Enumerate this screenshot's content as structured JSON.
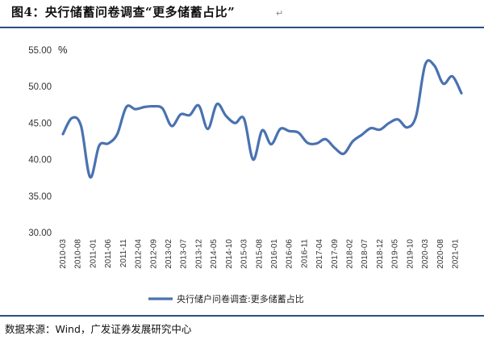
{
  "header": {
    "title": "图4：央行储蓄问卷调查“更多储蓄占比”",
    "mark": "↵"
  },
  "footer": {
    "source": "数据来源：Wind，广发证券发展研究中心"
  },
  "colors": {
    "line": "#4a72b0",
    "rule": "#2b4e85"
  },
  "chart_data": {
    "type": "line",
    "unit_label": "%",
    "ylim": [
      30,
      55
    ],
    "yticks": [
      "55.00",
      "50.00",
      "45.00",
      "40.00",
      "35.00",
      "30.00"
    ],
    "ytick_values": [
      55,
      50,
      45,
      40,
      35,
      30
    ],
    "grid": false,
    "legend_position": "bottom",
    "xtick_labels": [
      "2010-03",
      "2010-08",
      "2011-01",
      "2011-06",
      "2011-11",
      "2012-04",
      "2012-09",
      "2013-02",
      "2013-07",
      "2013-12",
      "2014-05",
      "2014-10",
      "2015-03",
      "2015-08",
      "2016-01",
      "2016-06",
      "2016-11",
      "2017-04",
      "2017-09",
      "2018-02",
      "2018-07",
      "2018-12",
      "2019-05",
      "2019-10",
      "2020-03",
      "2020-08",
      "2021-01"
    ],
    "series": [
      {
        "name": "央行储户问卷调查:更多储蓄占比",
        "x": [
          "2010-03",
          "2010-06",
          "2010-09",
          "2010-12",
          "2011-03",
          "2011-06",
          "2011-09",
          "2011-12",
          "2012-03",
          "2012-06",
          "2012-09",
          "2012-12",
          "2013-03",
          "2013-06",
          "2013-09",
          "2013-12",
          "2014-03",
          "2014-06",
          "2014-09",
          "2014-12",
          "2015-03",
          "2015-06",
          "2015-09",
          "2015-12",
          "2016-03",
          "2016-06",
          "2016-09",
          "2016-12",
          "2017-03",
          "2017-06",
          "2017-09",
          "2017-12",
          "2018-03",
          "2018-06",
          "2018-09",
          "2018-12",
          "2019-03",
          "2019-06",
          "2019-09",
          "2019-12",
          "2020-03",
          "2020-06",
          "2020-09",
          "2020-12",
          "2021-03"
        ],
        "values": [
          43.5,
          45.7,
          44.6,
          37.6,
          41.9,
          42.2,
          43.5,
          47.2,
          46.9,
          47.2,
          47.3,
          47.0,
          44.6,
          46.2,
          46.1,
          47.4,
          44.2,
          47.6,
          46.0,
          45.0,
          45.6,
          40.0,
          44.0,
          42.1,
          44.2,
          43.9,
          43.7,
          42.3,
          42.2,
          42.8,
          41.6,
          40.8,
          42.5,
          43.4,
          44.3,
          44.1,
          45.0,
          45.5,
          44.4,
          46.0,
          53.0,
          52.9,
          50.4,
          51.4,
          49.1
        ]
      }
    ]
  }
}
